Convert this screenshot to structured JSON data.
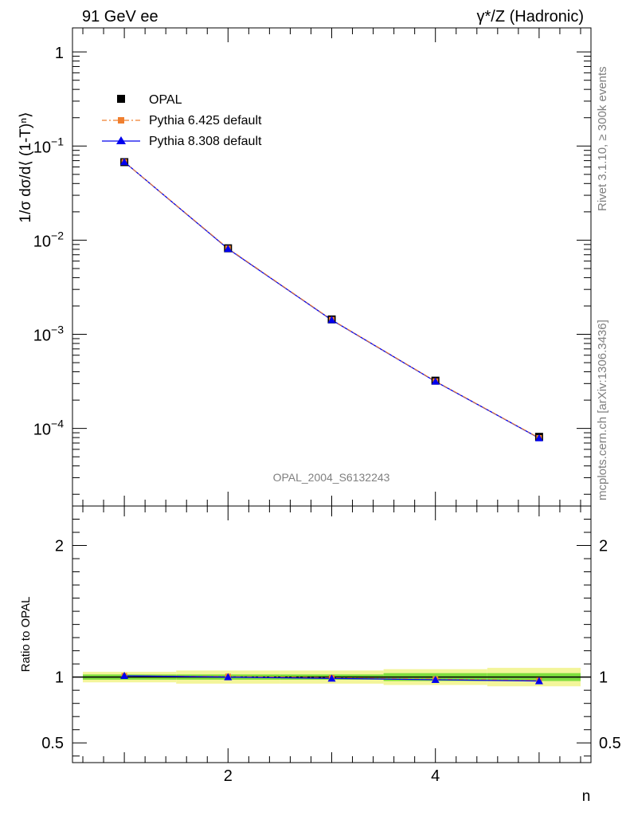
{
  "header": {
    "left": "91 GeV ee",
    "right": "γ*/Z (Hadronic)"
  },
  "side_text": {
    "rivet": "Rivet 3.1.10, ≥ 300k events",
    "mcplots": "mcplots.cern.ch [arXiv:1306.3436]"
  },
  "watermark": "OPAL_2004_S6132243",
  "colors": {
    "data": "#000000",
    "pythia6": "#f07f2f",
    "pythia8": "#0000ee",
    "band_inner": "#7fdf3f",
    "band_outer": "#f3f59a"
  },
  "chart_data": [
    {
      "type": "line",
      "panel": "main",
      "ylabel": "1/σ dσ/d⟨ (1-T)ⁿ⟩",
      "yscale": "log",
      "xlim": [
        0.5,
        5.5
      ],
      "ylim": [
        1.5e-05,
        1.8
      ],
      "x": [
        1,
        2,
        3,
        4,
        5
      ],
      "yticks": [
        {
          "v": 1,
          "base": "1",
          "exp": ""
        },
        {
          "v": 0.1,
          "base": "10",
          "exp": "−1"
        },
        {
          "v": 0.01,
          "base": "10",
          "exp": "−2"
        },
        {
          "v": 0.001,
          "base": "10",
          "exp": "−3"
        },
        {
          "v": 0.0001,
          "base": "10",
          "exp": "−4"
        }
      ],
      "series": [
        {
          "name": "OPAL",
          "values": [
            0.0675,
            0.0082,
            0.00144,
            0.000322,
            8.15e-05
          ]
        },
        {
          "name": "Pythia 6.425 default",
          "values": [
            0.0678,
            0.0082,
            0.00143,
            0.000318,
            7.95e-05
          ]
        },
        {
          "name": "Pythia 8.308 default",
          "values": [
            0.0677,
            0.0081,
            0.00142,
            0.000316,
            7.9e-05
          ]
        }
      ],
      "legend": "top-left"
    },
    {
      "type": "line",
      "panel": "ratio",
      "ylabel": "Ratio to OPAL",
      "xlabel": "n",
      "xlim": [
        0.5,
        5.5
      ],
      "ylim": [
        0.35,
        2.3
      ],
      "x": [
        1,
        2,
        3,
        4,
        5
      ],
      "xticks": [
        "2",
        "4"
      ],
      "yticks": [
        "0.5",
        "1",
        "2"
      ],
      "series": [
        {
          "name": "Pythia 6.425 default",
          "values": [
            1.01,
            1.005,
            0.995,
            0.985,
            0.975
          ]
        },
        {
          "name": "Pythia 8.308 default",
          "values": [
            1.01,
            1.0,
            0.99,
            0.98,
            0.97
          ]
        }
      ],
      "band_half_width": {
        "inner": [
          0.02,
          0.02,
          0.02,
          0.03,
          0.03
        ],
        "outer": [
          0.04,
          0.05,
          0.05,
          0.06,
          0.07
        ]
      }
    }
  ]
}
